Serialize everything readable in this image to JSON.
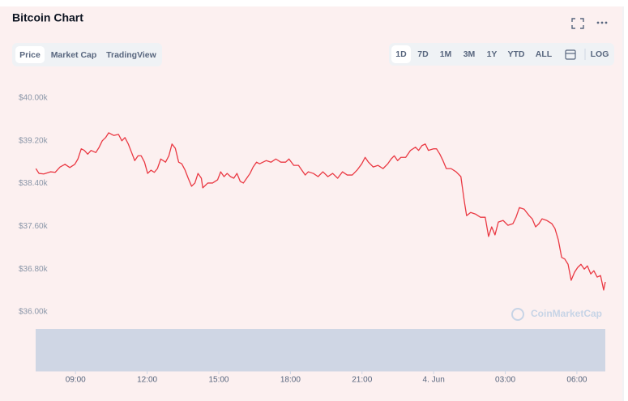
{
  "chart_data": {
    "type": "line",
    "title": "Bitcoin Chart",
    "tabs": [
      "Price",
      "Market Cap",
      "TradingView"
    ],
    "ranges": [
      "1D",
      "7D",
      "1M",
      "3M",
      "1Y",
      "YTD",
      "ALL"
    ],
    "log_label": "LOG",
    "watermark": "CoinMarketCap",
    "color": "#ea3943",
    "grid": false,
    "xlim": [
      7.33,
      31.19
    ],
    "xticks": [
      {
        "value": 9,
        "label": "09:00"
      },
      {
        "value": 12,
        "label": "12:00"
      },
      {
        "value": 15,
        "label": "15:00"
      },
      {
        "value": 18,
        "label": "18:00"
      },
      {
        "value": 21,
        "label": "21:00"
      },
      {
        "value": 24,
        "label": "4. Jun"
      },
      {
        "value": 27,
        "label": "03:00"
      },
      {
        "value": 30,
        "label": "06:00"
      }
    ],
    "ylim": [
      36000,
      40000
    ],
    "yticks": [
      {
        "value": 40000,
        "label": "$40.00k"
      },
      {
        "value": 39200,
        "label": "$39.20k"
      },
      {
        "value": 38400,
        "label": "$38.40k"
      },
      {
        "value": 37600,
        "label": "$37.60k"
      },
      {
        "value": 36800,
        "label": "$36.80k"
      },
      {
        "value": 36000,
        "label": "$36.00k"
      }
    ],
    "x": [
      7.34,
      7.47,
      7.67,
      7.95,
      8.15,
      8.35,
      8.56,
      8.76,
      8.97,
      9.1,
      9.24,
      9.37,
      9.51,
      9.65,
      9.85,
      9.99,
      10.12,
      10.26,
      10.39,
      10.6,
      10.8,
      10.94,
      11.07,
      11.21,
      11.35,
      11.48,
      11.62,
      11.75,
      11.89,
      12.02,
      12.16,
      12.3,
      12.43,
      12.57,
      12.77,
      12.91,
      13.04,
      13.18,
      13.32,
      13.45,
      13.59,
      13.72,
      13.86,
      14.0,
      14.13,
      14.27,
      14.33,
      14.54,
      14.74,
      14.95,
      15.08,
      15.22,
      15.35,
      15.49,
      15.63,
      15.76,
      15.9,
      16.03,
      16.17,
      16.31,
      16.44,
      16.58,
      16.71,
      16.85,
      16.99,
      17.19,
      17.39,
      17.6,
      17.8,
      17.94,
      18.14,
      18.34,
      18.48,
      18.62,
      18.75,
      18.96,
      19.16,
      19.36,
      19.57,
      19.77,
      19.98,
      20.18,
      20.38,
      20.59,
      20.79,
      20.99,
      21.13,
      21.27,
      21.47,
      21.67,
      21.88,
      22.08,
      22.22,
      22.35,
      22.49,
      22.63,
      22.83,
      23.03,
      23.24,
      23.37,
      23.51,
      23.65,
      23.78,
      23.99,
      24.12,
      24.26,
      24.39,
      24.53,
      24.73,
      24.94,
      25.14,
      25.28,
      25.38,
      25.55,
      25.75,
      25.96,
      26.16,
      26.3,
      26.43,
      26.57,
      26.71,
      26.91,
      27.11,
      27.32,
      27.45,
      27.59,
      27.79,
      28.0,
      28.13,
      28.27,
      28.41,
      28.54,
      28.74,
      28.95,
      29.08,
      29.22,
      29.36,
      29.49,
      29.63,
      29.76,
      29.9,
      30.03,
      30.17,
      30.31,
      30.44,
      30.58,
      30.71,
      30.85,
      30.99,
      31.12,
      31.19
    ],
    "values": [
      38680,
      38590,
      38580,
      38620,
      38610,
      38710,
      38760,
      38700,
      38760,
      38860,
      39050,
      39020,
      38950,
      39020,
      38980,
      39080,
      39200,
      39260,
      39350,
      39300,
      39320,
      39200,
      39260,
      39140,
      38980,
      38830,
      38920,
      38920,
      38800,
      38590,
      38650,
      38610,
      38680,
      38860,
      38800,
      38920,
      39140,
      39060,
      38800,
      38770,
      38650,
      38500,
      38350,
      38410,
      38590,
      38500,
      38320,
      38410,
      38410,
      38470,
      38620,
      38530,
      38590,
      38530,
      38500,
      38590,
      38440,
      38410,
      38500,
      38590,
      38710,
      38800,
      38770,
      38800,
      38830,
      38800,
      38860,
      38800,
      38800,
      38860,
      38740,
      38740,
      38650,
      38560,
      38620,
      38590,
      38530,
      38620,
      38530,
      38590,
      38500,
      38620,
      38560,
      38560,
      38650,
      38770,
      38890,
      38800,
      38710,
      38740,
      38680,
      38770,
      38860,
      38920,
      38830,
      38890,
      38890,
      39020,
      39080,
      39020,
      39110,
      39140,
      39020,
      39050,
      39050,
      38950,
      38830,
      38680,
      38680,
      38620,
      38530,
      38080,
      37800,
      37860,
      37830,
      37770,
      37770,
      37410,
      37590,
      37440,
      37680,
      37710,
      37620,
      37650,
      37770,
      37950,
      37920,
      37800,
      37740,
      37590,
      37650,
      37740,
      37710,
      37650,
      37560,
      37350,
      37020,
      36990,
      36890,
      36590,
      36740,
      36830,
      36890,
      36800,
      36860,
      36710,
      36770,
      36650,
      36680,
      36410,
      36560
    ]
  }
}
